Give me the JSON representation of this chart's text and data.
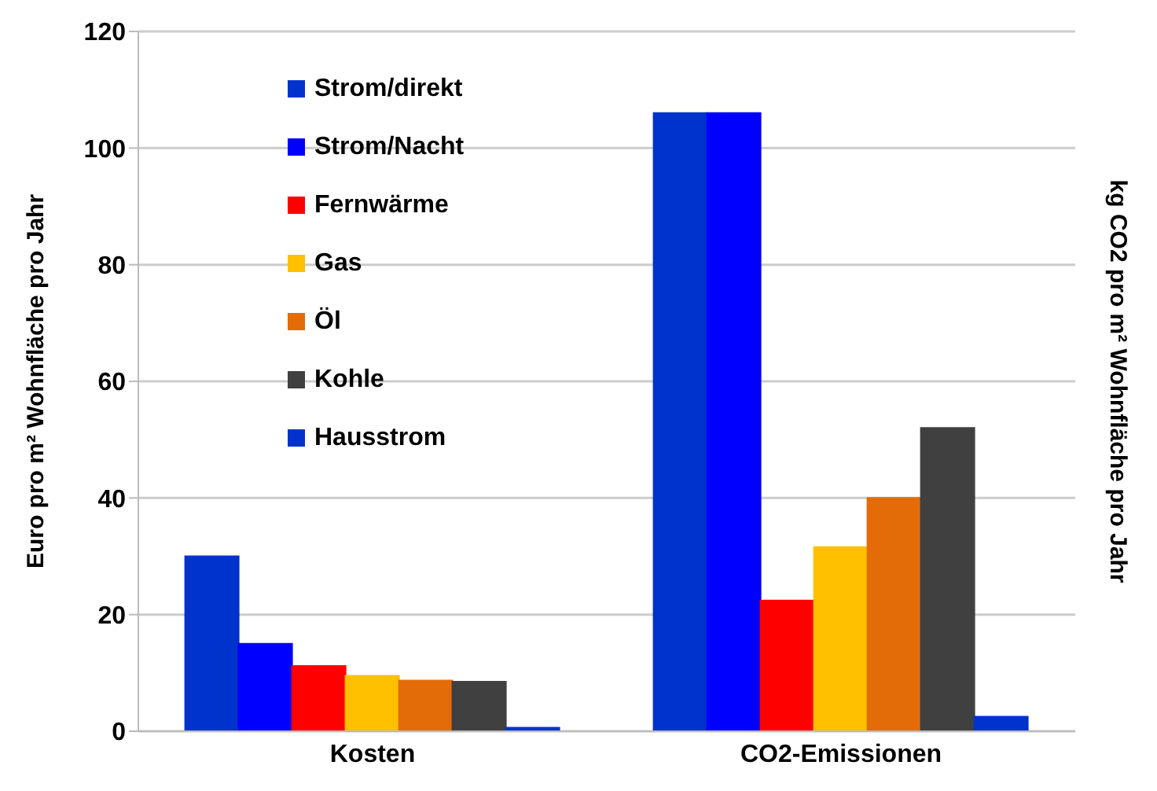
{
  "chart_data": {
    "type": "bar",
    "categories": [
      "Kosten",
      "CO2-Emissionen"
    ],
    "ylabel": "Euro pro m² Wohnfläche pro Jahr",
    "y2label": "kg CO2 pro m² Wohnfläche pro Jahr",
    "ylim": [
      0,
      120
    ],
    "yticks": [
      0,
      20,
      40,
      60,
      80,
      100,
      120
    ],
    "grid": "y",
    "legend": "top left",
    "series": [
      {
        "name": "Strom/direkt",
        "color": "#0033cc",
        "values": [
          30,
          106
        ]
      },
      {
        "name": "Strom/Nacht",
        "color": "#0000ff",
        "values": [
          15,
          106
        ]
      },
      {
        "name": "Fernwärme",
        "color": "#ff0000",
        "values": [
          11.2,
          22.4
        ]
      },
      {
        "name": "Gas",
        "color": "#ffc000",
        "values": [
          9.5,
          31.6
        ]
      },
      {
        "name": "Öl",
        "color": "#e36c09",
        "values": [
          8.7,
          40
        ]
      },
      {
        "name": "Kohle",
        "color": "#404040",
        "values": [
          8.5,
          52
        ]
      },
      {
        "name": "Hausstrom",
        "color": "#0033cc",
        "values": [
          0.6,
          2.5
        ]
      }
    ]
  }
}
